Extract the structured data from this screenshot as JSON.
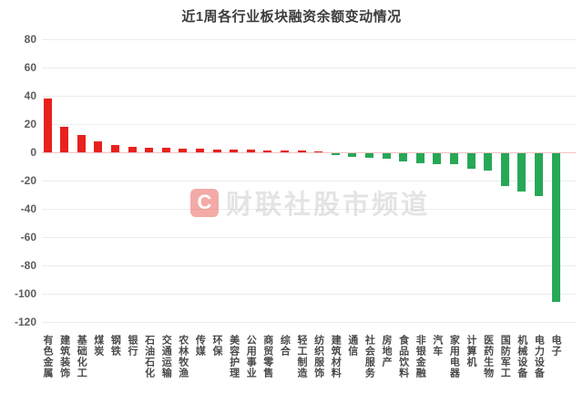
{
  "title": "近1周各行业板块融资余额变动情况",
  "watermark": {
    "logo_letter": "C",
    "text": "财联社股市频道"
  },
  "colors": {
    "positive_bar": "#e8211c",
    "negative_bar": "#27a857",
    "gridline": "#ececec",
    "zero_line": "#f0c3c3",
    "title_text": "#3d3d3d",
    "axis_tick_text": "#5d5d5d",
    "category_text": "#4a4a4a",
    "watermark_logo": "#e8453c"
  },
  "chart_data": {
    "type": "bar",
    "title": "近1周各行业板块融资余额变动情况",
    "categories": [
      "有色金属",
      "建筑装饰",
      "基础化工",
      "煤炭",
      "钢铁",
      "银行",
      "石油石化",
      "交通运输",
      "农林牧渔",
      "传媒",
      "环保",
      "美容护理",
      "公用事业",
      "商贸零售",
      "综合",
      "轻工制造",
      "纺织服饰",
      "建筑材料",
      "通信",
      "社会服务",
      "房地产",
      "食品饮料",
      "非银金融",
      "汽车",
      "家用电器",
      "计算机",
      "医药生物",
      "国防军工",
      "机械设备",
      "电力设备",
      "电子"
    ],
    "values": [
      38,
      18,
      12,
      7.5,
      5,
      4.2,
      3.5,
      3,
      2.8,
      2.5,
      2.2,
      2,
      1.8,
      1.5,
      1.2,
      1,
      0.4,
      -0.4,
      -2.8,
      -3.2,
      -3.6,
      -5.5,
      -7,
      -7.5,
      -8,
      -11,
      -12,
      -23,
      -27,
      -30,
      -105
    ],
    "yticks": [
      80,
      60,
      40,
      20,
      0,
      -20,
      -40,
      -60,
      -80,
      -100,
      -120
    ],
    "ylim": [
      -120,
      80
    ],
    "grid": true,
    "legend": null,
    "sort_order": "descending",
    "bar_color_rule": "red if positive, green if negative"
  }
}
